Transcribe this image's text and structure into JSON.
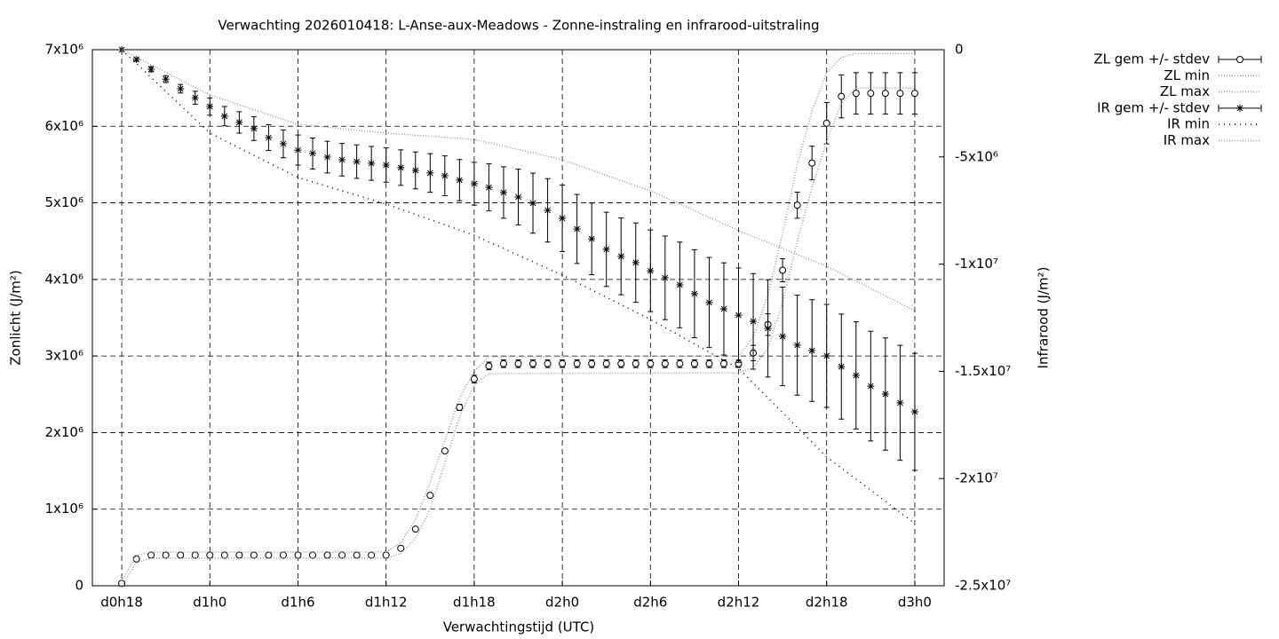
{
  "chart_data": {
    "type": "line",
    "title": "Verwachting 2026010418: L-Anse-aux-Meadows - Zonne-instraling en infrarood-uitstraling",
    "xlabel": "Verwachtingstijd (UTC)",
    "ylabel": "Zonlicht (J/m²)",
    "y2label": "Infrarood (J/m²)",
    "grid": true,
    "legend": "outside-right",
    "xlim": [
      16,
      74
    ],
    "xticks": [
      {
        "value": 18,
        "label": "d0h18"
      },
      {
        "value": 24,
        "label": "d1h0"
      },
      {
        "value": 30,
        "label": "d1h6"
      },
      {
        "value": 36,
        "label": "d1h12"
      },
      {
        "value": 42,
        "label": "d1h18"
      },
      {
        "value": 48,
        "label": "d2h0"
      },
      {
        "value": 54,
        "label": "d2h6"
      },
      {
        "value": 60,
        "label": "d2h12"
      },
      {
        "value": 66,
        "label": "d2h18"
      },
      {
        "value": 72,
        "label": "d3h0"
      }
    ],
    "ylim": [
      0,
      7000000
    ],
    "yticks": [
      0,
      {
        "value": 1000000,
        "label": "1x10⁶"
      },
      {
        "value": 2000000,
        "label": "2x10⁶"
      },
      {
        "value": 3000000,
        "label": "3x10⁶"
      },
      {
        "value": 4000000,
        "label": "4x10⁶"
      },
      {
        "value": 5000000,
        "label": "5x10⁶"
      },
      {
        "value": 6000000,
        "label": "6x10⁶"
      },
      {
        "value": 7000000,
        "label": "7x10⁶"
      }
    ],
    "y2lim": [
      -25000000,
      0
    ],
    "y2ticks": [
      0,
      {
        "value": -5000000,
        "label": "-5x10⁶"
      },
      {
        "value": -10000000,
        "label": "-1x10⁷"
      },
      {
        "value": -15000000,
        "label": "-1.5x10⁷"
      },
      {
        "value": -20000000,
        "label": "-2x10⁷"
      },
      {
        "value": -25000000,
        "label": "-2.5x10⁷"
      }
    ],
    "x": [
      18,
      19,
      20,
      21,
      22,
      23,
      24,
      25,
      26,
      27,
      28,
      29,
      30,
      31,
      32,
      33,
      34,
      35,
      36,
      37,
      38,
      39,
      40,
      41,
      42,
      43,
      44,
      45,
      46,
      47,
      48,
      49,
      50,
      51,
      52,
      53,
      54,
      55,
      56,
      57,
      58,
      59,
      60,
      61,
      62,
      63,
      64,
      65,
      66,
      67,
      68,
      69,
      70,
      71,
      72
    ],
    "series": [
      {
        "name": "ZL gem +/- stdev",
        "color": "#000000",
        "marker": "circle",
        "values": [
          30000,
          350000,
          400000,
          400000,
          400000,
          400000,
          400000,
          400000,
          400000,
          400000,
          400000,
          400000,
          400000,
          400000,
          400000,
          400000,
          400000,
          400000,
          400000,
          490000,
          740000,
          1180000,
          1760000,
          2330000,
          2700000,
          2870000,
          2900000,
          2900000,
          2900000,
          2900000,
          2900000,
          2900000,
          2900000,
          2900000,
          2900000,
          2900000,
          2900000,
          2900000,
          2900000,
          2900000,
          2900000,
          2900000,
          2900000,
          3040000,
          3410000,
          4120000,
          4970000,
          5520000,
          6040000,
          6390000,
          6430000,
          6430000,
          6430000,
          6430000,
          6430000
        ],
        "errors": [
          20000,
          20000,
          20000,
          20000,
          20000,
          20000,
          20000,
          20000,
          20000,
          20000,
          20000,
          20000,
          20000,
          20000,
          20000,
          20000,
          20000,
          20000,
          20000,
          20000,
          20000,
          20000,
          20000,
          40000,
          50000,
          50000,
          50000,
          50000,
          50000,
          50000,
          50000,
          50000,
          50000,
          50000,
          50000,
          50000,
          50000,
          50000,
          50000,
          50000,
          50000,
          50000,
          50000,
          100000,
          140000,
          150000,
          170000,
          220000,
          270000,
          280000,
          270000,
          270000,
          270000,
          270000,
          270000
        ]
      },
      {
        "name": "ZL min",
        "color": "#999999",
        "dash": "1,2",
        "x": [
          18,
          19,
          20,
          36,
          37,
          38,
          39,
          40,
          41,
          42,
          43,
          60,
          61,
          62,
          63,
          64,
          65,
          66,
          67,
          68,
          72
        ],
        "values": [
          0,
          300000,
          360000,
          360000,
          420000,
          620000,
          1000000,
          1600000,
          2200000,
          2620000,
          2770000,
          2780000,
          2850000,
          3100000,
          3700000,
          4500000,
          5200000,
          5800000,
          6300000,
          6500000,
          6500000
        ]
      },
      {
        "name": "ZL max",
        "color": "#999999",
        "dash": "1,2",
        "x": [
          18,
          19,
          20,
          36,
          37,
          38,
          39,
          40,
          41,
          42,
          43,
          60,
          61,
          62,
          63,
          64,
          65,
          66,
          67,
          68,
          72
        ],
        "values": [
          60000,
          400000,
          440000,
          440000,
          560000,
          860000,
          1350000,
          1900000,
          2450000,
          2800000,
          2990000,
          3000000,
          3250000,
          3800000,
          4600000,
          5500000,
          6200000,
          6700000,
          6900000,
          6950000,
          6950000
        ]
      },
      {
        "name": "IR gem +/- stdev",
        "color": "#000000",
        "marker": "star",
        "axis": "y2",
        "values": [
          0,
          -455000,
          -910000,
          -1370000,
          -1820000,
          -2240000,
          -2650000,
          -3100000,
          -3390000,
          -3680000,
          -4100000,
          -4390000,
          -4680000,
          -4840000,
          -5010000,
          -5130000,
          -5220000,
          -5300000,
          -5380000,
          -5500000,
          -5630000,
          -5750000,
          -5880000,
          -6080000,
          -6250000,
          -6420000,
          -6660000,
          -6870000,
          -7160000,
          -7490000,
          -7860000,
          -8360000,
          -8820000,
          -9310000,
          -9640000,
          -9930000,
          -10310000,
          -10640000,
          -10970000,
          -11380000,
          -11790000,
          -12090000,
          -12380000,
          -12670000,
          -13000000,
          -13370000,
          -13780000,
          -14030000,
          -14280000,
          -14780000,
          -15190000,
          -15690000,
          -16060000,
          -16470000,
          -16890000
        ],
        "errors": [
          0,
          80000,
          120000,
          160000,
          200000,
          300000,
          400000,
          450000,
          500000,
          550000,
          600000,
          650000,
          700000,
          720000,
          740000,
          760000,
          780000,
          790000,
          800000,
          830000,
          860000,
          900000,
          930000,
          960000,
          1000000,
          1100000,
          1200000,
          1300000,
          1400000,
          1480000,
          1550000,
          1610000,
          1670000,
          1730000,
          1790000,
          1850000,
          1900000,
          1950000,
          2000000,
          2050000,
          2100000,
          2150000,
          2200000,
          2230000,
          2270000,
          2300000,
          2330000,
          2370000,
          2400000,
          2450000,
          2500000,
          2560000,
          2620000,
          2680000,
          2730000
        ]
      },
      {
        "name": "IR min",
        "color": "#000000",
        "dash": "1,5",
        "axis": "y2",
        "x": [
          18,
          24,
          30,
          36,
          42,
          48,
          54,
          60,
          66,
          72
        ],
        "values": [
          0,
          -3890000,
          -5960000,
          -7200000,
          -8650000,
          -10510000,
          -12580000,
          -14860000,
          -18990000,
          -22100000
        ]
      },
      {
        "name": "IR max",
        "color": "#999999",
        "dash": "1,2",
        "axis": "y2",
        "x": [
          18,
          24,
          30,
          36,
          42,
          48,
          54,
          60,
          66,
          72
        ],
        "values": [
          0,
          -2110000,
          -3480000,
          -3890000,
          -4180000,
          -5130000,
          -6580000,
          -8440000,
          -10100000,
          -12170000
        ]
      }
    ]
  }
}
